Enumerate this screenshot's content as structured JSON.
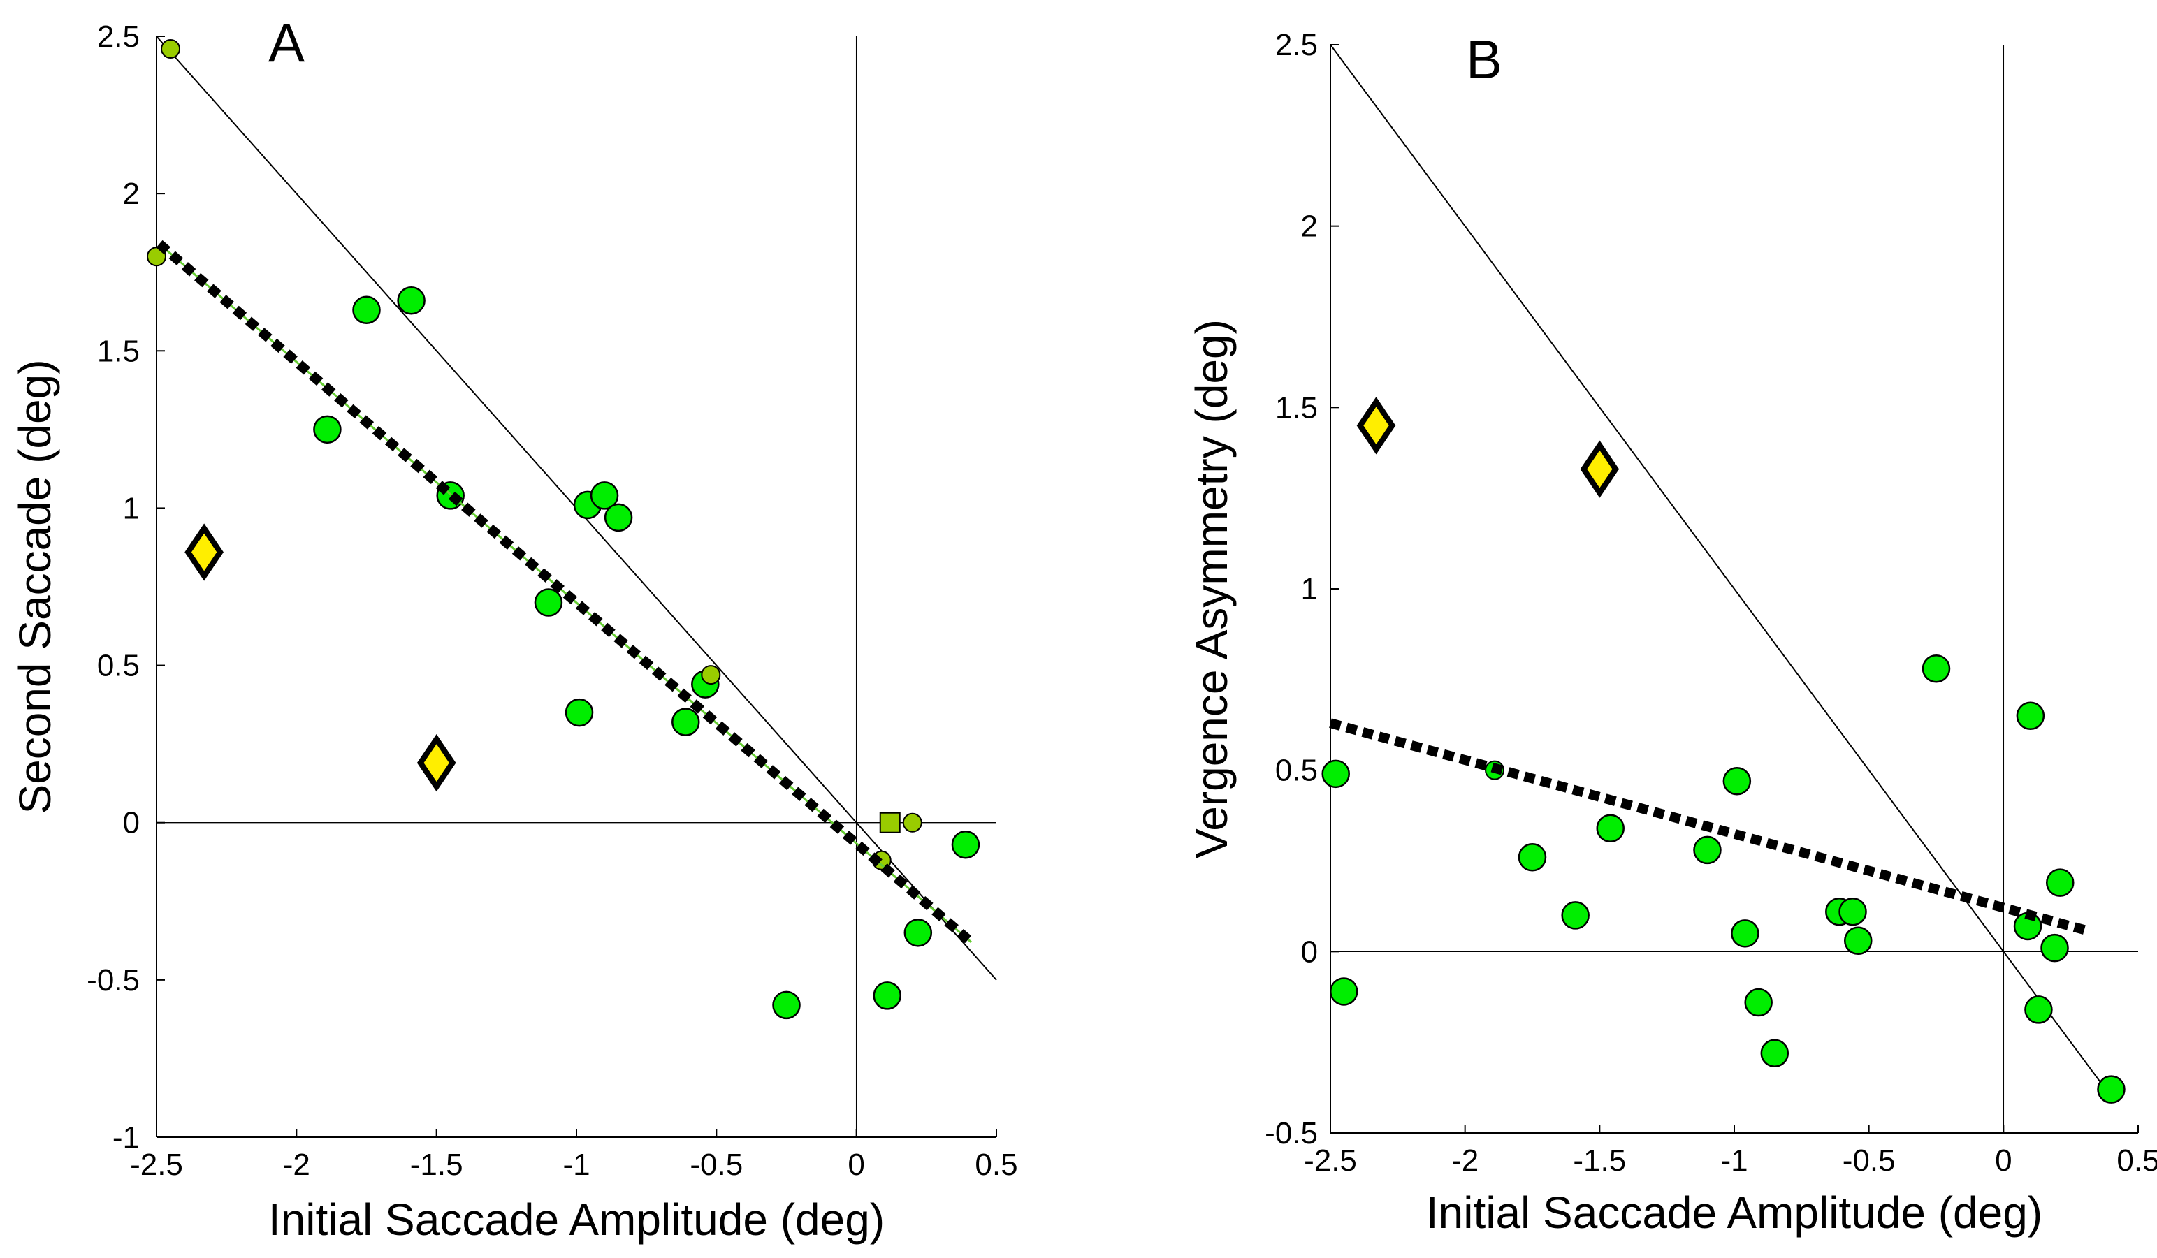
{
  "chart_data": [
    {
      "panel": "A",
      "type": "scatter",
      "xlabel": "Initial Saccade Amplitude (deg)",
      "ylabel": "Second Saccade (deg)",
      "xlim": [
        -2.5,
        0.5
      ],
      "ylim": [
        -1,
        2.5
      ],
      "xticks": [
        -2.5,
        -2,
        -1.5,
        -1,
        -0.5,
        0,
        0.5
      ],
      "xtick_labels": [
        "-2.5",
        "-2",
        "-1.5",
        "-1",
        "-0.5",
        "0",
        "0.5"
      ],
      "yticks": [
        -1,
        -0.5,
        0,
        0.5,
        1,
        1.5,
        2,
        2.5
      ],
      "ytick_labels": [
        "-1",
        "-0.5",
        "0",
        "0.5",
        "1",
        "1.5",
        "2",
        "2.5"
      ],
      "reference_line": {
        "name": "y = -x",
        "x": [
          -2.5,
          0.5
        ],
        "y": [
          2.5,
          -0.5
        ]
      },
      "regression_line": {
        "name": "dashed fit",
        "x": [
          -2.49,
          0.41
        ],
        "y": [
          1.84,
          -0.38
        ]
      },
      "zero_lines": {
        "horizontal_y": 0,
        "vertical_x": 0
      },
      "series": [
        {
          "name": "green circles",
          "marker": "circle",
          "color": "#00ee00",
          "points": [
            {
              "x": -1.75,
              "y": 1.63
            },
            {
              "x": -1.59,
              "y": 1.66
            },
            {
              "x": -1.89,
              "y": 1.25
            },
            {
              "x": -1.45,
              "y": 1.04
            },
            {
              "x": -0.96,
              "y": 1.01
            },
            {
              "x": -0.9,
              "y": 1.04
            },
            {
              "x": -0.85,
              "y": 0.97
            },
            {
              "x": -1.1,
              "y": 0.7
            },
            {
              "x": -0.99,
              "y": 0.35
            },
            {
              "x": -0.54,
              "y": 0.44
            },
            {
              "x": -0.61,
              "y": 0.32
            },
            {
              "x": 0.39,
              "y": -0.07
            },
            {
              "x": 0.22,
              "y": -0.35
            },
            {
              "x": -0.25,
              "y": -0.58
            },
            {
              "x": 0.11,
              "y": -0.55
            }
          ]
        },
        {
          "name": "small olive circles",
          "marker": "circle-small",
          "color": "#99cc00",
          "points": [
            {
              "x": -2.45,
              "y": 2.46
            },
            {
              "x": -2.5,
              "y": 1.8
            },
            {
              "x": -0.52,
              "y": 0.47
            },
            {
              "x": 0.09,
              "y": -0.12
            },
            {
              "x": 0.2,
              "y": 0.0
            }
          ]
        },
        {
          "name": "olive square",
          "marker": "square",
          "color": "#99cc00",
          "points": [
            {
              "x": 0.12,
              "y": 0.0
            }
          ]
        },
        {
          "name": "yellow diamonds",
          "marker": "diamond",
          "color": "#ffee00",
          "points": [
            {
              "x": -2.33,
              "y": 0.86
            },
            {
              "x": -1.5,
              "y": 0.19
            }
          ]
        }
      ]
    },
    {
      "panel": "B",
      "type": "scatter",
      "xlabel": "Initial Saccade Amplitude (deg)",
      "ylabel": "Vergence Asymmetry (deg)",
      "xlim": [
        -2.5,
        0.5
      ],
      "ylim": [
        -0.5,
        2.5
      ],
      "xticks": [
        -2.5,
        -2,
        -1.5,
        -1,
        -0.5,
        0,
        0.5
      ],
      "xtick_labels": [
        "-2.5",
        "-2",
        "-1.5",
        "-1",
        "-0.5",
        "0",
        "0.5"
      ],
      "yticks": [
        -0.5,
        0,
        0.5,
        1,
        1.5,
        2,
        2.5
      ],
      "ytick_labels": [
        "-0.5",
        "0",
        "0.5",
        "1",
        "1.5",
        "2",
        "2.5"
      ],
      "reference_line": {
        "name": "y = -x",
        "x": [
          -2.5,
          0.4
        ],
        "y": [
          2.5,
          -0.4
        ]
      },
      "regression_line": {
        "name": "dashed fit",
        "x": [
          -2.5,
          0.3
        ],
        "y": [
          0.63,
          0.06
        ]
      },
      "zero_lines": {
        "horizontal_y": 0,
        "vertical_x": 0
      },
      "series": [
        {
          "name": "green circles",
          "marker": "circle",
          "color": "#00ee00",
          "points": [
            {
              "x": -2.48,
              "y": 0.49
            },
            {
              "x": -2.45,
              "y": -0.11
            },
            {
              "x": -1.75,
              "y": 0.26
            },
            {
              "x": -1.59,
              "y": 0.1
            },
            {
              "x": -1.46,
              "y": 0.34
            },
            {
              "x": -1.1,
              "y": 0.28
            },
            {
              "x": -0.99,
              "y": 0.47
            },
            {
              "x": -0.96,
              "y": 0.05
            },
            {
              "x": -0.91,
              "y": -0.14
            },
            {
              "x": -0.85,
              "y": -0.28
            },
            {
              "x": -0.61,
              "y": 0.11
            },
            {
              "x": -0.56,
              "y": 0.11
            },
            {
              "x": -0.54,
              "y": 0.03
            },
            {
              "x": -0.25,
              "y": 0.78
            },
            {
              "x": 0.1,
              "y": 0.65
            },
            {
              "x": 0.09,
              "y": 0.07
            },
            {
              "x": 0.13,
              "y": -0.16
            },
            {
              "x": 0.19,
              "y": 0.01
            },
            {
              "x": 0.21,
              "y": 0.19
            },
            {
              "x": 0.4,
              "y": -0.38
            }
          ]
        },
        {
          "name": "small green circles",
          "marker": "circle-small",
          "color": "#00ee00",
          "points": [
            {
              "x": -1.89,
              "y": 0.5
            }
          ]
        },
        {
          "name": "yellow diamonds",
          "marker": "diamond",
          "color": "#ffee00",
          "points": [
            {
              "x": -2.33,
              "y": 1.45
            },
            {
              "x": -1.5,
              "y": 1.33
            }
          ]
        }
      ]
    }
  ]
}
